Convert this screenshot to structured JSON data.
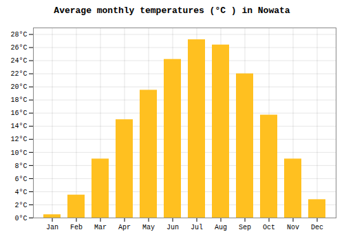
{
  "chart_data": {
    "type": "bar",
    "title": "Average monthly temperatures (°C ) in Nowata",
    "categories": [
      "Jan",
      "Feb",
      "Mar",
      "Apr",
      "May",
      "Jun",
      "Jul",
      "Aug",
      "Sep",
      "Oct",
      "Nov",
      "Dec"
    ],
    "values": [
      0.5,
      3.5,
      9.0,
      15.0,
      19.5,
      24.2,
      27.2,
      26.4,
      22.0,
      15.7,
      9.0,
      2.8
    ],
    "color": "#FFC020",
    "ylim": [
      0,
      29
    ],
    "yticks": [
      {
        "value": 0,
        "label": "0°C"
      },
      {
        "value": 2,
        "label": "2°C"
      },
      {
        "value": 4,
        "label": "4°C"
      },
      {
        "value": 6,
        "label": "6°C"
      },
      {
        "value": 8,
        "label": "8°C"
      },
      {
        "value": 10,
        "label": "10°C"
      },
      {
        "value": 12,
        "label": "12°C"
      },
      {
        "value": 14,
        "label": "14°C"
      },
      {
        "value": 16,
        "label": "16°C"
      },
      {
        "value": 18,
        "label": "18°C"
      },
      {
        "value": 20,
        "label": "20°C"
      },
      {
        "value": 22,
        "label": "22°C"
      },
      {
        "value": 24,
        "label": "24°C"
      },
      {
        "value": 26,
        "label": "26°C"
      },
      {
        "value": 28,
        "label": "28°C"
      }
    ],
    "grid": true
  }
}
